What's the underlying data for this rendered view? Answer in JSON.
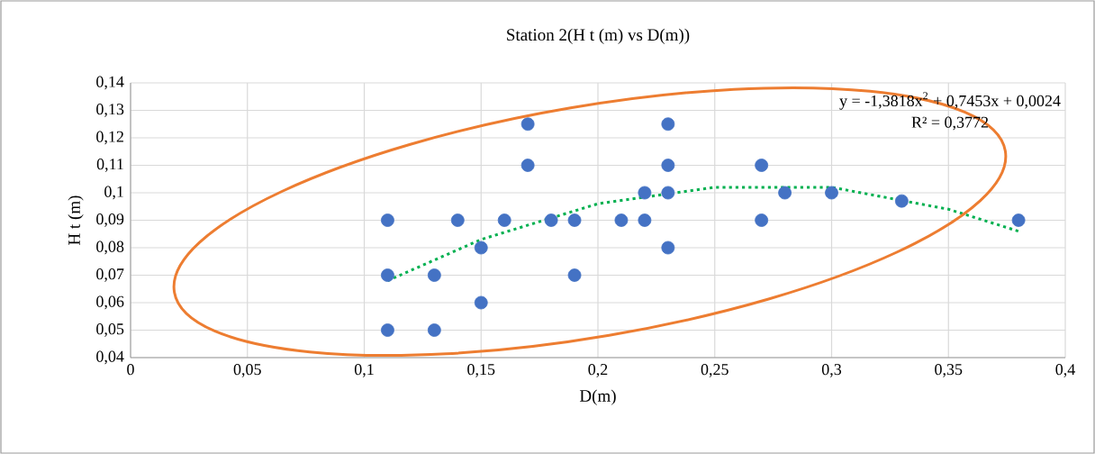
{
  "chart_data": {
    "type": "scatter",
    "title": "Station 2(H t (m) vs D(m))",
    "xlabel": "D(m)",
    "ylabel": "H t (m)",
    "xlim": [
      0,
      0.4
    ],
    "xticks": [
      0,
      {
        "value": 0.05,
        "label": "0,05"
      },
      {
        "value": 0.1,
        "label": "0,1"
      },
      {
        "value": 0.15,
        "label": "0,15"
      },
      {
        "value": 0.2,
        "label": "0,2"
      },
      {
        "value": 0.25,
        "label": "0,25"
      },
      {
        "value": 0.3,
        "label": "0,3"
      },
      {
        "value": 0.35,
        "label": "0,35"
      },
      {
        "value": 0.4,
        "label": "0,4"
      }
    ],
    "ylim": [
      0.04,
      0.14
    ],
    "yticks": [
      {
        "value": 0.04,
        "label": "0,04"
      },
      {
        "value": 0.05,
        "label": "0,05"
      },
      {
        "value": 0.06,
        "label": "0,06"
      },
      {
        "value": 0.07,
        "label": "0,07"
      },
      {
        "value": 0.08,
        "label": "0,08"
      },
      {
        "value": 0.09,
        "label": "0,09"
      },
      {
        "value": 0.1,
        "label": "0,1"
      },
      {
        "value": 0.11,
        "label": "0,11"
      },
      {
        "value": 0.12,
        "label": "0,12"
      },
      {
        "value": 0.13,
        "label": "0,13"
      },
      {
        "value": 0.14,
        "label": "0,14"
      }
    ],
    "grid": true,
    "series": [
      {
        "color": "#4472c4",
        "marker": "circle",
        "x": [
          0.11,
          0.11,
          0.11,
          0.13,
          0.13,
          0.14,
          0.15,
          0.15,
          0.16,
          0.17,
          0.17,
          0.18,
          0.19,
          0.19,
          0.21,
          0.22,
          0.22,
          0.23,
          0.23,
          0.23,
          0.23,
          0.27,
          0.27,
          0.28,
          0.3,
          0.33,
          0.38
        ],
        "values": [
          0.09,
          0.07,
          0.05,
          0.07,
          0.05,
          0.09,
          0.08,
          0.06,
          0.09,
          0.125,
          0.11,
          0.09,
          0.09,
          0.07,
          0.09,
          0.1,
          0.09,
          0.125,
          0.11,
          0.1,
          0.08,
          0.11,
          0.09,
          0.1,
          0.1,
          0.097,
          0.09
        ]
      },
      {
        "type": "line",
        "color": "#00b050",
        "line_style": "dotted",
        "marker": "none",
        "x": [
          0.11,
          0.15,
          0.2,
          0.25,
          0.3,
          0.35,
          0.38
        ],
        "values": [
          0.068,
          0.083,
          0.096,
          0.102,
          0.102,
          0.094,
          0.086
        ]
      }
    ],
    "annotations": [
      "y = -1,3818x$^{2}$ + 0,7453x + 0,0024",
      "R² = 0,3772"
    ]
  }
}
